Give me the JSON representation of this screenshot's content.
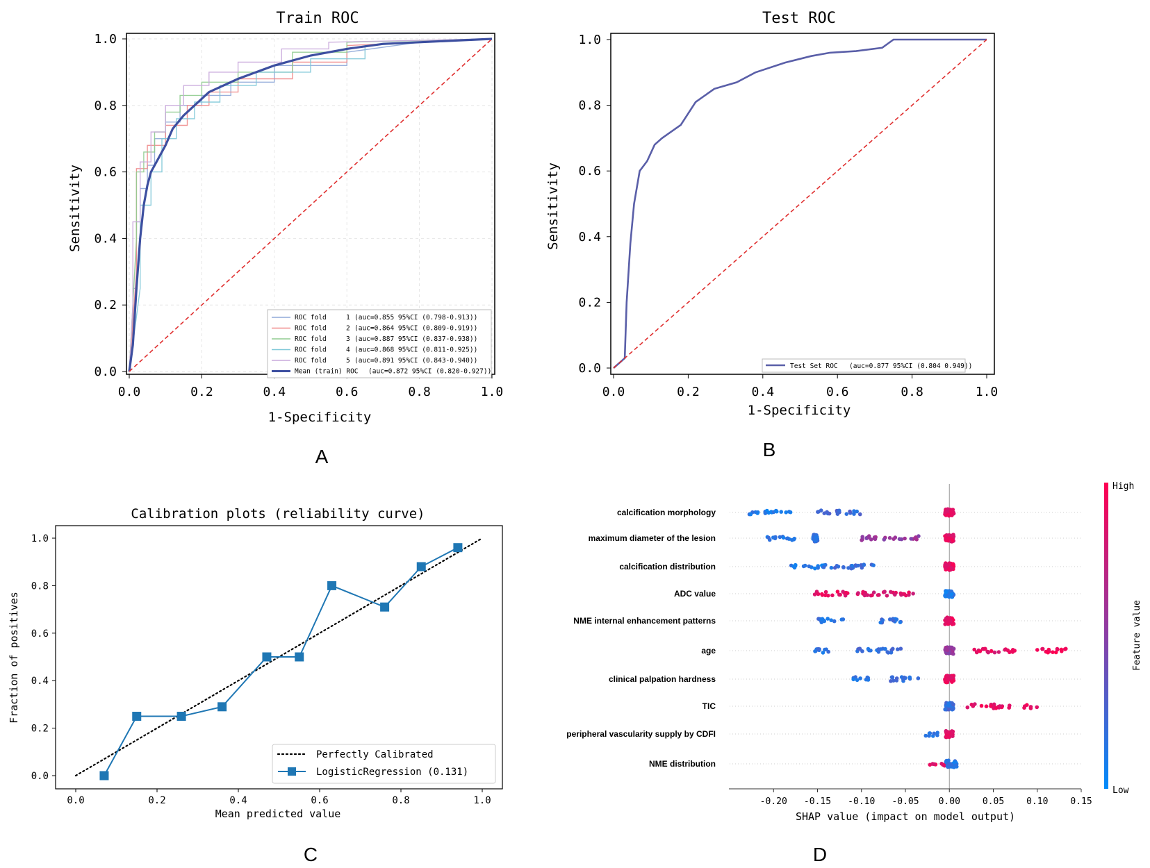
{
  "panel_labels": [
    "A",
    "B",
    "C",
    "D"
  ],
  "chart_data": [
    {
      "id": "A",
      "type": "line",
      "title": "Train ROC",
      "xlabel": "1-Specificity",
      "ylabel": "Sensitivity",
      "xlim": [
        0,
        1
      ],
      "ylim": [
        0,
        1
      ],
      "ticks": [
        "0.0",
        "0.2",
        "0.4",
        "0.6",
        "0.8",
        "1.0"
      ],
      "grid": true,
      "legend_position": "bottom-right",
      "series": [
        {
          "name": "ROC fold",
          "fold": "1",
          "label": "(auc=0.855 95%CI (0.798-0.913))",
          "color": "#8fa8d8",
          "x": [
            0,
            0.01,
            0.01,
            0.02,
            0.02,
            0.03,
            0.03,
            0.05,
            0.05,
            0.07,
            0.07,
            0.1,
            0.1,
            0.14,
            0.14,
            0.2,
            0.2,
            0.28,
            0.28,
            0.4,
            0.4,
            0.6,
            0.6,
            0.8,
            1
          ],
          "y": [
            0,
            0.1,
            0.25,
            0.25,
            0.45,
            0.45,
            0.55,
            0.55,
            0.62,
            0.62,
            0.7,
            0.7,
            0.75,
            0.75,
            0.8,
            0.8,
            0.83,
            0.83,
            0.87,
            0.87,
            0.92,
            0.92,
            0.96,
            0.99,
            1
          ]
        },
        {
          "name": "ROC fold",
          "fold": "2",
          "label": "(auc=0.864 95%CI (0.809-0.919))",
          "color": "#f08a8a",
          "x": [
            0,
            0.02,
            0.02,
            0.05,
            0.05,
            0.1,
            0.1,
            0.16,
            0.16,
            0.22,
            0.22,
            0.3,
            0.3,
            0.45,
            0.45,
            0.6,
            0.6,
            1
          ],
          "y": [
            0,
            0.3,
            0.61,
            0.61,
            0.68,
            0.68,
            0.74,
            0.74,
            0.8,
            0.8,
            0.84,
            0.84,
            0.88,
            0.88,
            0.93,
            0.93,
            0.98,
            1
          ]
        },
        {
          "name": "ROC fold",
          "fold": "3",
          "label": "(auc=0.887 95%CI (0.837-0.938))",
          "color": "#90cc90",
          "x": [
            0,
            0.02,
            0.02,
            0.04,
            0.04,
            0.07,
            0.07,
            0.1,
            0.1,
            0.14,
            0.14,
            0.2,
            0.2,
            0.3,
            0.3,
            0.45,
            0.45,
            0.6,
            0.6,
            1
          ],
          "y": [
            0,
            0.4,
            0.6,
            0.6,
            0.66,
            0.66,
            0.72,
            0.72,
            0.78,
            0.78,
            0.83,
            0.83,
            0.87,
            0.87,
            0.9,
            0.9,
            0.96,
            0.96,
            0.99,
            1
          ]
        },
        {
          "name": "ROC fold",
          "fold": "4",
          "label": "(auc=0.868 95%CI (0.811-0.925))",
          "color": "#7fc8d8",
          "x": [
            0,
            0.03,
            0.03,
            0.06,
            0.06,
            0.09,
            0.09,
            0.13,
            0.13,
            0.18,
            0.18,
            0.25,
            0.25,
            0.35,
            0.35,
            0.5,
            0.5,
            0.65,
            0.65,
            1
          ],
          "y": [
            0,
            0.25,
            0.5,
            0.5,
            0.6,
            0.6,
            0.7,
            0.7,
            0.76,
            0.76,
            0.81,
            0.81,
            0.86,
            0.86,
            0.9,
            0.9,
            0.94,
            0.94,
            0.98,
            1
          ]
        },
        {
          "name": "ROC fold",
          "fold": "5",
          "label": "(auc=0.891 95%CI (0.843-0.940))",
          "color": "#c9a8dc",
          "x": [
            0,
            0.01,
            0.01,
            0.03,
            0.03,
            0.06,
            0.06,
            0.1,
            0.1,
            0.15,
            0.15,
            0.22,
            0.22,
            0.3,
            0.3,
            0.42,
            0.42,
            0.55,
            0.55,
            1
          ],
          "y": [
            0,
            0.2,
            0.45,
            0.45,
            0.63,
            0.63,
            0.72,
            0.72,
            0.8,
            0.8,
            0.86,
            0.86,
            0.9,
            0.9,
            0.93,
            0.93,
            0.97,
            0.97,
            0.99,
            1
          ]
        },
        {
          "name": "Mean (train) ROC",
          "label": "(auc=0.872 95%CI (0.820-0.927))",
          "color": "#3d4fa0",
          "bold": true,
          "x": [
            0,
            0.01,
            0.02,
            0.03,
            0.04,
            0.05,
            0.06,
            0.08,
            0.1,
            0.12,
            0.15,
            0.18,
            0.22,
            0.26,
            0.3,
            0.35,
            0.4,
            0.5,
            0.6,
            0.7,
            0.8,
            0.9,
            1
          ],
          "y": [
            0,
            0.08,
            0.25,
            0.4,
            0.5,
            0.56,
            0.6,
            0.64,
            0.68,
            0.73,
            0.77,
            0.8,
            0.84,
            0.86,
            0.88,
            0.9,
            0.92,
            0.95,
            0.97,
            0.985,
            0.99,
            0.995,
            1
          ]
        },
        {
          "name": "chance",
          "color": "#e03030",
          "dashed": true,
          "x": [
            0,
            1
          ],
          "y": [
            0,
            1
          ]
        }
      ]
    },
    {
      "id": "B",
      "type": "line",
      "title": "Test ROC",
      "xlabel": "1-Specificity",
      "ylabel": "Sensitivity",
      "xlim": [
        0,
        1
      ],
      "ylim": [
        0,
        1
      ],
      "ticks": [
        "0.0",
        "0.2",
        "0.4",
        "0.6",
        "0.8",
        "1.0"
      ],
      "grid": false,
      "legend_position": "bottom-right",
      "series": [
        {
          "name": "Test Set ROC",
          "label": "(auc=0.877 95%CI (0.804 0.949))",
          "color": "#5a5fa8",
          "x": [
            0,
            0.03,
            0.035,
            0.045,
            0.055,
            0.07,
            0.09,
            0.11,
            0.13,
            0.18,
            0.22,
            0.27,
            0.33,
            0.38,
            0.46,
            0.53,
            0.58,
            0.65,
            0.72,
            0.75,
            0.76,
            1
          ],
          "y": [
            0,
            0.03,
            0.2,
            0.38,
            0.5,
            0.6,
            0.63,
            0.68,
            0.7,
            0.74,
            0.81,
            0.85,
            0.87,
            0.9,
            0.93,
            0.95,
            0.96,
            0.965,
            0.975,
            1,
            1,
            1
          ]
        },
        {
          "name": "chance",
          "color": "#e03030",
          "dashed": true,
          "x": [
            0,
            1
          ],
          "y": [
            0,
            1
          ]
        }
      ]
    },
    {
      "id": "C",
      "type": "line",
      "title": "Calibration plots  (reliability curve)",
      "xlabel": "Mean predicted value",
      "ylabel": "Fraction of positives",
      "xlim": [
        0,
        1
      ],
      "ylim": [
        0,
        1
      ],
      "ticks": [
        "0.0",
        "0.2",
        "0.4",
        "0.6",
        "0.8",
        "1.0"
      ],
      "legend_position": "bottom-right",
      "series": [
        {
          "name": "Perfectly Calibrated",
          "color": "#000000",
          "dotted": true,
          "x": [
            0,
            1
          ],
          "y": [
            0,
            1
          ]
        },
        {
          "name": "LogisticRegression (0.131)",
          "color": "#1f77b4",
          "x": [
            0.07,
            0.15,
            0.26,
            0.36,
            0.47,
            0.55,
            0.63,
            0.76,
            0.85,
            0.94
          ],
          "y": [
            0.0,
            0.25,
            0.25,
            0.29,
            0.5,
            0.5,
            0.8,
            0.71,
            0.88,
            0.96
          ]
        }
      ]
    },
    {
      "id": "D",
      "type": "scatter",
      "subtype": "shap-beeswarm",
      "xlabel": "SHAP value (impact on model output)",
      "xlim": [
        -0.25,
        0.15
      ],
      "xticks": [
        "-0.20",
        "-0.15",
        "-0.10",
        "-0.05",
        "0.00",
        "0.05",
        "0.10",
        "0.15"
      ],
      "colorbar": {
        "label": "Feature value",
        "high": "High",
        "low": "Low",
        "high_color": "#ff0051",
        "low_color": "#008bfb"
      },
      "features": [
        {
          "name": "calcification morphology",
          "clusters": [
            [
              -0.23,
              -0.18,
              0.12
            ],
            [
              -0.15,
              -0.1,
              0.22
            ],
            [
              -0.005,
              0.005,
              0.9
            ]
          ]
        },
        {
          "name": "maximum diameter of the lesion",
          "clusters": [
            [
              -0.21,
              -0.175,
              0.15
            ],
            [
              -0.155,
              -0.15,
              0.2
            ],
            [
              -0.1,
              -0.035,
              0.55
            ],
            [
              -0.005,
              0.005,
              0.9
            ]
          ]
        },
        {
          "name": "calcification distribution",
          "clusters": [
            [
              -0.18,
              -0.14,
              0.12
            ],
            [
              -0.135,
              -0.085,
              0.2
            ],
            [
              -0.005,
              0.005,
              0.9
            ]
          ]
        },
        {
          "name": "ADC value",
          "clusters": [
            [
              -0.155,
              -0.115,
              0.9
            ],
            [
              -0.105,
              -0.04,
              0.85
            ],
            [
              -0.005,
              0.005,
              0.12
            ]
          ]
        },
        {
          "name": "NME internal enhancement patterns",
          "clusters": [
            [
              -0.15,
              -0.12,
              0.15
            ],
            [
              -0.085,
              -0.055,
              0.2
            ],
            [
              -0.005,
              0.005,
              0.9
            ]
          ]
        },
        {
          "name": "age",
          "clusters": [
            [
              -0.155,
              -0.13,
              0.15
            ],
            [
              -0.105,
              -0.055,
              0.2
            ],
            [
              -0.005,
              0.005,
              0.55
            ],
            [
              0.025,
              0.075,
              0.88
            ],
            [
              0.1,
              0.135,
              0.92
            ]
          ]
        },
        {
          "name": "clinical palpation hardness",
          "clusters": [
            [
              -0.11,
              -0.085,
              0.15
            ],
            [
              -0.07,
              -0.035,
              0.2
            ],
            [
              -0.005,
              0.005,
              0.9
            ]
          ]
        },
        {
          "name": "TIC",
          "clusters": [
            [
              -0.005,
              0.005,
              0.2
            ],
            [
              0.02,
              0.07,
              0.9
            ],
            [
              0.085,
              0.1,
              0.92
            ]
          ]
        },
        {
          "name": "peripheral vascularity supply by CDFI",
          "clusters": [
            [
              -0.028,
              -0.01,
              0.12
            ],
            [
              -0.004,
              0.004,
              0.9
            ]
          ]
        },
        {
          "name": "NME distribution",
          "clusters": [
            [
              -0.025,
              -0.005,
              0.9
            ],
            [
              -0.004,
              0.009,
              0.15
            ]
          ]
        }
      ]
    }
  ]
}
